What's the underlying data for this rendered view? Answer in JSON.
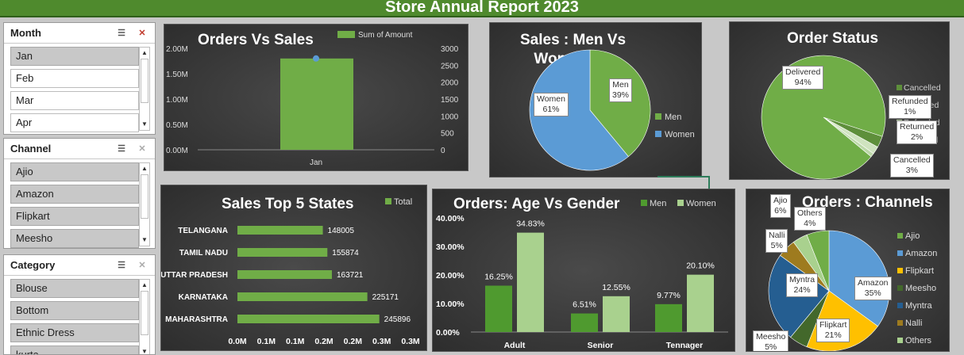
{
  "header": {
    "title": "Store Annual Report 2023"
  },
  "slicers": {
    "month": {
      "title": "Month",
      "items": [
        "Jan",
        "Feb",
        "Mar",
        "Apr"
      ]
    },
    "channel": {
      "title": "Channel",
      "items": [
        "Ajio",
        "Amazon",
        "Flipkart",
        "Meesho"
      ]
    },
    "category": {
      "title": "Category",
      "items": [
        "Blouse",
        "Bottom",
        "Ethnic Dress",
        "kurta"
      ]
    }
  },
  "orders_vs_sales": {
    "title": "Orders Vs Sales",
    "legend": "Sum of Amount"
  },
  "sales_men_women": {
    "title_line1": "Sales : Men Vs",
    "title_line2": "Women",
    "legend_men": "Men",
    "legend_women": "Women",
    "men_label": "Men",
    "men_pct": "39%",
    "women_label": "Women",
    "women_pct": "61%"
  },
  "order_status": {
    "title": "Order Status",
    "legend": [
      "Cancelled",
      "Delivered",
      "Refunded",
      "Returned"
    ],
    "delivered_label": "Delivered",
    "delivered_pct": "94%",
    "refunded_label": "Refunded",
    "refunded_pct": "1%",
    "returned_label": "Returned",
    "returned_pct": "2%",
    "cancelled_label": "Cancelled",
    "cancelled_pct": "3%"
  },
  "top_states": {
    "title": "Sales Top 5 States",
    "legend": "Total"
  },
  "age_gender": {
    "title": "Orders: Age Vs Gender",
    "legend_men": "Men",
    "legend_women": "Women"
  },
  "channels": {
    "title": "Orders : Channels",
    "legend": [
      "Ajio",
      "Amazon",
      "Flipkart",
      "Meesho",
      "Myntra",
      "Nalli",
      "Others"
    ],
    "labels": {
      "ajio": [
        "Ajio",
        "6%"
      ],
      "others": [
        "Others",
        "4%"
      ],
      "nalli": [
        "Nalli",
        "5%"
      ],
      "myntra": [
        "Myntra",
        "24%"
      ],
      "amazon": [
        "Amazon",
        "35%"
      ],
      "flipkart": [
        "Flipkart",
        "21%"
      ],
      "meesho": [
        "Meesho",
        "5%"
      ]
    }
  },
  "colors": {
    "green": "#70ad47",
    "blue": "#5b9bd5",
    "yellow": "#ffc000",
    "darkblue": "#255e91",
    "gold": "#9e7b1f",
    "darkgreen": "#43682b",
    "lightgreen": "#a9d18e"
  },
  "chart_data": [
    {
      "type": "bar",
      "title": "Orders Vs Sales",
      "categories": [
        "Jan"
      ],
      "series": [
        {
          "name": "Sum of Amount",
          "values": [
            1800000
          ]
        }
      ],
      "secondary_series": [
        {
          "name": "Orders",
          "values": [
            2700
          ]
        }
      ],
      "ylim": [
        0,
        2000000
      ],
      "y2lim": [
        0,
        3000
      ],
      "yticks": [
        "0.00M",
        "0.50M",
        "1.00M",
        "1.50M",
        "2.00M"
      ],
      "y2ticks": [
        "0",
        "500",
        "1000",
        "1500",
        "2000",
        "2500",
        "3000"
      ]
    },
    {
      "type": "pie",
      "title": "Sales : Men Vs Women",
      "categories": [
        "Men",
        "Women"
      ],
      "values": [
        39,
        61
      ]
    },
    {
      "type": "pie",
      "title": "Order Status",
      "categories": [
        "Delivered",
        "Refunded",
        "Returned",
        "Cancelled"
      ],
      "values": [
        94,
        1,
        2,
        3
      ]
    },
    {
      "type": "bar",
      "orientation": "horizontal",
      "title": "Sales Top 5 States",
      "categories": [
        "TELANGANA",
        "TAMIL NADU",
        "UTTAR PRADESH",
        "KARNATAKA",
        "MAHARASHTRA"
      ],
      "values": [
        148005,
        155874,
        163721,
        225171,
        245896
      ],
      "xticks": [
        "0.0M",
        "0.1M",
        "0.1M",
        "0.2M",
        "0.2M",
        "0.3M",
        "0.3M"
      ],
      "xlim": [
        0,
        300000
      ]
    },
    {
      "type": "bar",
      "title": "Orders: Age Vs Gender",
      "categories": [
        "Adult",
        "Senior",
        "Tennager"
      ],
      "series": [
        {
          "name": "Men",
          "values": [
            16.25,
            6.51,
            9.77
          ]
        },
        {
          "name": "Women",
          "values": [
            34.83,
            12.55,
            20.1
          ]
        }
      ],
      "value_labels": [
        [
          "16.25%",
          "6.51%",
          "9.77%"
        ],
        [
          "34.83%",
          "12.55%",
          "20.10%"
        ]
      ],
      "yticks": [
        "0.00%",
        "10.00%",
        "20.00%",
        "30.00%",
        "40.00%"
      ],
      "ylim": [
        0,
        40
      ]
    },
    {
      "type": "pie",
      "title": "Orders : Channels",
      "categories": [
        "Amazon",
        "Flipkart",
        "Meesho",
        "Myntra",
        "Nalli",
        "Others",
        "Ajio"
      ],
      "values": [
        35,
        21,
        5,
        24,
        5,
        4,
        6
      ]
    }
  ]
}
